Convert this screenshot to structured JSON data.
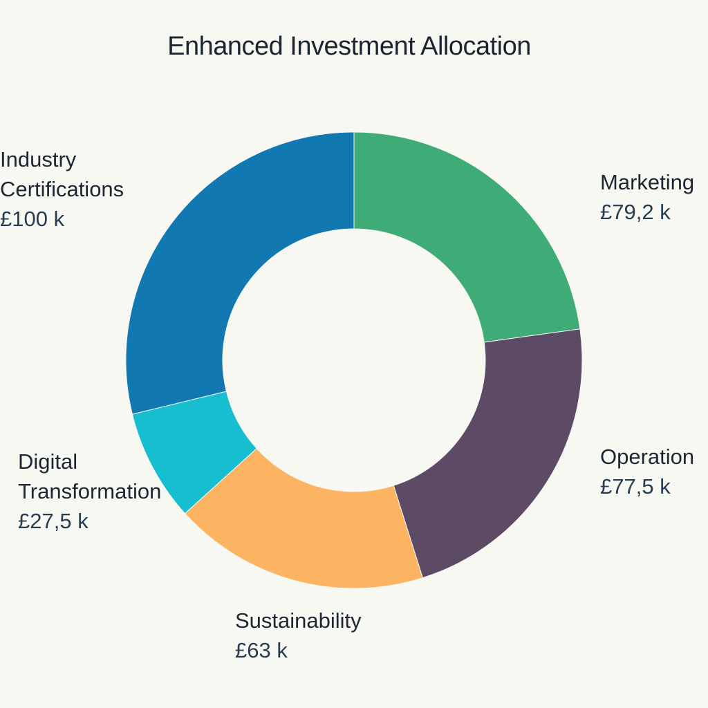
{
  "chart_data": {
    "type": "pie",
    "variant": "donut",
    "title": "Enhanced Investment Allocation",
    "slices": [
      {
        "name": "Marketing",
        "value": 79.2,
        "value_label": "£79,2 k",
        "color": "#3fac77"
      },
      {
        "name": "Operation",
        "value": 77.5,
        "value_label": "£77,5 k",
        "color": "#5d4b66"
      },
      {
        "name": "Sustainability",
        "value": 63,
        "value_label": "£63 k",
        "color": "#fdb462"
      },
      {
        "name": "Digital Transformation",
        "value": 27.5,
        "value_label": "£27,5 k",
        "color": "#17becf"
      },
      {
        "name": "Industry Certifications",
        "value": 100,
        "value_label": "£100 k",
        "color": "#1178b2"
      }
    ],
    "start_angle_deg": 0,
    "direction": "clockwise",
    "legend": "none",
    "background": "#f8f8f3"
  }
}
